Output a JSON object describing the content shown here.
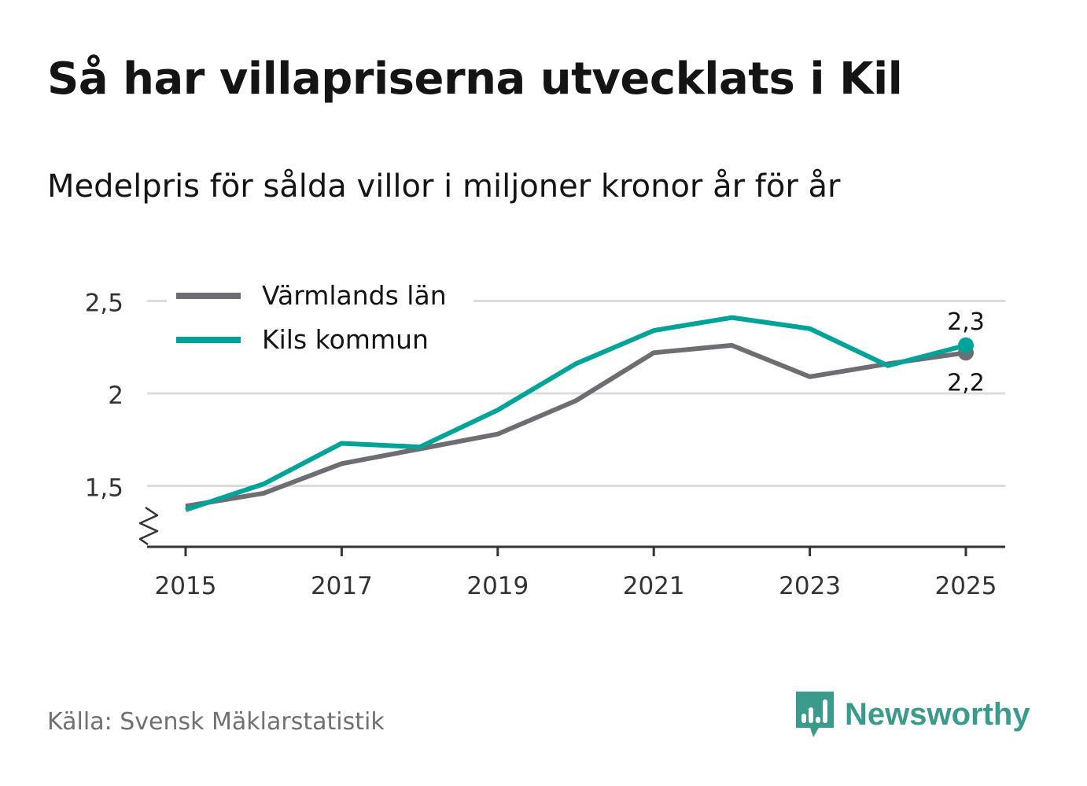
{
  "title": "Så har villapriserna utvecklats i Kil",
  "subtitle": "Medelpris för sålda villor i miljoner kronor år för år",
  "source": "Källa: Svensk Mäklarstatistik",
  "brand": {
    "name": "Newsworthy",
    "icon": "chart-bubble-icon"
  },
  "colors": {
    "series_grey": "#6e6d73",
    "series_teal": "#00a398",
    "grid": "#dcdcdc",
    "axis": "#333333",
    "brand": "#3a9a8c"
  },
  "chart_data": {
    "type": "line",
    "x": [
      2015,
      2016,
      2017,
      2018,
      2019,
      2020,
      2021,
      2022,
      2023,
      2024,
      2025
    ],
    "x_ticks": [
      2015,
      2017,
      2019,
      2021,
      2023,
      2025
    ],
    "y_ticks": [
      1.5,
      2,
      2.5
    ],
    "y_tick_labels": [
      "1,5",
      "2",
      "2,5"
    ],
    "ylim": [
      1.17,
      2.5
    ],
    "axis_break": true,
    "grid": true,
    "legend_position": "top-left",
    "series": [
      {
        "name": "Värmlands län",
        "color": "#6e6d73",
        "values": [
          1.39,
          1.46,
          1.62,
          1.7,
          1.78,
          1.96,
          2.22,
          2.26,
          2.09,
          2.16,
          2.22
        ],
        "end_label": "2,2"
      },
      {
        "name": "Kils kommun",
        "color": "#00a398",
        "values": [
          1.37,
          1.51,
          1.73,
          1.71,
          1.91,
          2.16,
          2.34,
          2.41,
          2.35,
          2.15,
          2.26
        ],
        "end_label": "2,3"
      }
    ]
  }
}
